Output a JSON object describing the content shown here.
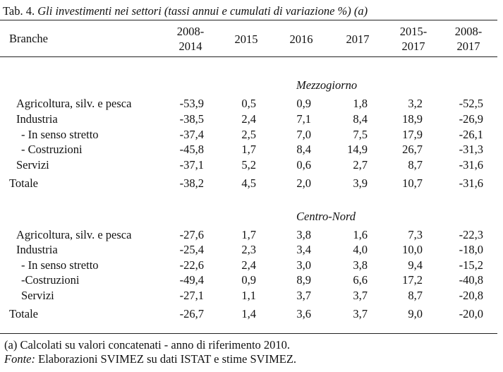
{
  "title": {
    "prefix": "Tab. 4.",
    "text": "Gli investimenti nei settori (tassi annui e cumulati di variazione %) (a)"
  },
  "columns": {
    "branche": "Branche",
    "c2008_2014_a": "2008-",
    "c2008_2014_b": "2014",
    "c2015": "2015",
    "c2016": "2016",
    "c2017": "2017",
    "c2015_2017_a": "2015-",
    "c2015_2017_b": "2017",
    "c2008_2017_a": "2008-",
    "c2008_2017_b": "2017"
  },
  "sections": [
    {
      "name": "Mezzogiorno",
      "rows": [
        {
          "label": "Agricoltura, silv. e pesca",
          "values": [
            "-53,9",
            "0,5",
            "0,9",
            "1,8",
            "3,2",
            "-52,5"
          ]
        },
        {
          "label": "Industria",
          "values": [
            "-38,5",
            "2,4",
            "7,1",
            "8,4",
            "18,9",
            "-26,9"
          ]
        },
        {
          "label": "- In senso stretto",
          "values": [
            "-37,4",
            "2,5",
            "7,0",
            "7,5",
            "17,9",
            "-26,1"
          ]
        },
        {
          "label": "- Costruzioni",
          "values": [
            "-45,8",
            "1,7",
            "8,4",
            "14,9",
            "26,7",
            "-31,3"
          ]
        },
        {
          "label": "Servizi",
          "values": [
            "-37,1",
            "5,2",
            "0,6",
            "2,7",
            "8,7",
            "-31,6"
          ]
        },
        {
          "label": "Totale",
          "values": [
            "-38,2",
            "4,5",
            "2,0",
            "3,9",
            "10,7",
            "-31,6"
          ]
        }
      ]
    },
    {
      "name": "Centro-Nord",
      "rows": [
        {
          "label": "Agricoltura, silv. e pesca",
          "values": [
            "-27,6",
            "1,7",
            "3,8",
            "1,6",
            "7,3",
            "-22,3"
          ]
        },
        {
          "label": "Industria",
          "values": [
            "-25,4",
            "2,3",
            "3,4",
            "4,0",
            "10,0",
            "-18,0"
          ]
        },
        {
          "label": "- In senso stretto",
          "values": [
            "-22,6",
            "2,4",
            "3,0",
            "3,8",
            "9,4",
            "-15,2"
          ]
        },
        {
          "label": "-Costruzioni",
          "values": [
            "-49,4",
            "0,9",
            "8,9",
            "6,6",
            "17,2",
            "-40,8"
          ]
        },
        {
          "label": "Servizi",
          "values": [
            "-27,1",
            "1,1",
            "3,7",
            "3,7",
            "8,7",
            "-20,8"
          ]
        },
        {
          "label": "Totale",
          "values": [
            "-26,7",
            "1,4",
            "3,6",
            "3,7",
            "9,0",
            "-20,0"
          ]
        }
      ]
    }
  ],
  "notes": {
    "a": "(a) Calcolati su valori concatenati - anno di riferimento 2010.",
    "fonte_label": "Fonte:",
    "fonte_text": " Elaborazioni SVIMEZ su dati ISTAT e stime SVIMEZ."
  }
}
